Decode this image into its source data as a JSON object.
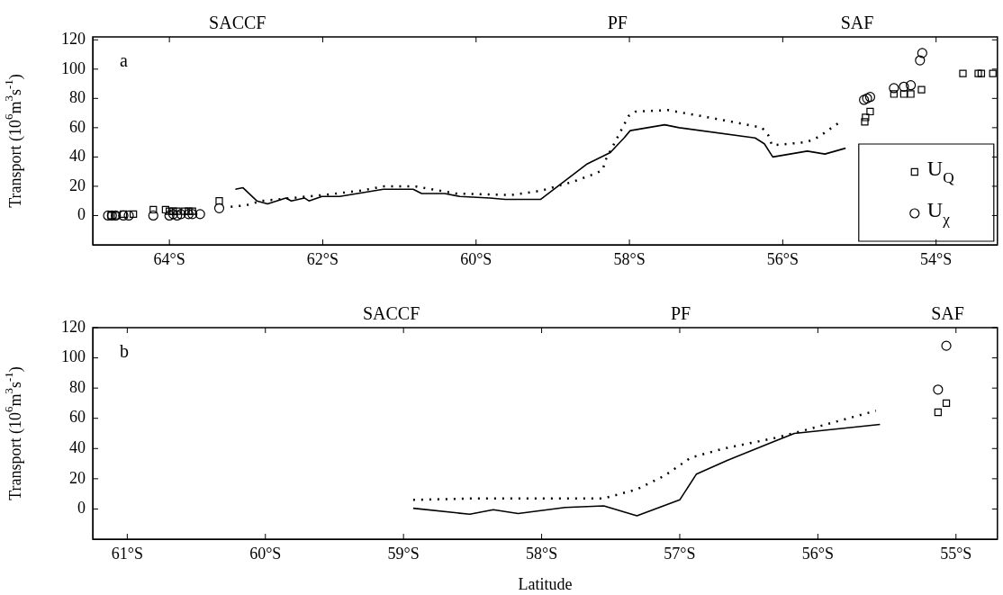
{
  "chart_data": [
    {
      "type": "line",
      "ylabel": "Transport (10$^{6}$m$^{3}$s$^{-1}$)",
      "xlim": [
        -65,
        -53.2
      ],
      "ylim": [
        -20,
        122
      ],
      "xticks": [
        {
          "value": -64,
          "label": "64°S"
        },
        {
          "value": -62,
          "label": "62°S"
        },
        {
          "value": -60,
          "label": "60°S"
        },
        {
          "value": -58,
          "label": "58°S"
        },
        {
          "value": -56,
          "label": "56°S"
        },
        {
          "value": -54,
          "label": "54°S"
        }
      ],
      "yticks": [
        0,
        20,
        40,
        60,
        80,
        100,
        120
      ],
      "grid": false,
      "legend": "bottom right",
      "annotations": [
        "SACCF",
        "PF",
        "SAF",
        "a"
      ],
      "series": [
        {
          "type": "line",
          "color": "#000000",
          "line_style": "solid",
          "marker": "none",
          "x": [
            -63.14,
            -63.04,
            -62.86,
            -62.72,
            -62.48,
            -62.41,
            -62.24,
            -62.18,
            -62.01,
            -61.78,
            -61.21,
            -60.82,
            -60.71,
            -60.41,
            -60.21,
            -59.82,
            -59.62,
            -59.16,
            -58.86,
            -58.56,
            -58.25,
            -58.07,
            -57.99,
            -57.54,
            -57.35,
            -56.36,
            -56.24,
            -56.13,
            -55.68,
            -55.45,
            -55.18
          ],
          "values": [
            18,
            19,
            10,
            8,
            12,
            10,
            12,
            10,
            13,
            13,
            18,
            18,
            15,
            15,
            13,
            12,
            11,
            11,
            23,
            35,
            43,
            53,
            58,
            62,
            60,
            53,
            49,
            40,
            44,
            42,
            46
          ]
        },
        {
          "type": "line",
          "color": "#000000",
          "line_style": "dotted",
          "marker": "none",
          "x": [
            -63.2,
            -63.0,
            -62.8,
            -62.4,
            -62.0,
            -61.5,
            -61.2,
            -60.8,
            -60.26,
            -59.54,
            -59.15,
            -58.74,
            -58.48,
            -58.35,
            -58.31,
            -58.13,
            -58.01,
            -57.92,
            -57.5,
            -57.07,
            -56.66,
            -56.27,
            -56.19,
            -56.14,
            -55.71,
            -55.59,
            -55.47,
            -55.25
          ],
          "values": [
            6,
            7,
            10,
            12,
            14,
            17,
            20,
            20,
            15,
            14,
            17,
            23,
            28,
            31,
            38,
            56,
            68,
            71,
            72,
            68,
            64,
            60,
            55,
            48,
            50,
            52,
            56,
            64
          ]
        },
        {
          "type": "scatter",
          "name": "U$_{Q}$",
          "color": "#000000",
          "marker": "square",
          "x": [
            -64.76,
            -64.7,
            -64.6,
            -64.47,
            -64.21,
            -64.05,
            -64.0,
            -63.95,
            -63.9,
            -63.8,
            -63.75,
            -63.7,
            -63.35,
            -54.93,
            -54.92,
            -54.86,
            -54.55,
            -54.42,
            -54.33,
            -54.19,
            -53.65,
            -53.45,
            -53.41,
            -53.26
          ],
          "values": [
            0,
            0,
            1,
            1,
            4,
            4,
            3,
            3,
            3,
            3,
            3,
            3,
            10,
            64,
            67,
            71,
            83,
            83,
            83,
            86,
            97,
            97,
            97,
            97
          ]
        },
        {
          "type": "scatter",
          "name": "U$_{χ}$",
          "color": "#000000",
          "marker": "circle",
          "x": [
            -64.8,
            -64.75,
            -64.7,
            -64.6,
            -64.53,
            -64.21,
            -64.0,
            -63.95,
            -63.9,
            -63.85,
            -63.75,
            -63.7,
            -63.6,
            -63.35,
            -54.94,
            -54.9,
            -54.86,
            -54.55,
            -54.42,
            -54.33,
            -54.21,
            -54.18
          ],
          "values": [
            0,
            0,
            0,
            0,
            0,
            0,
            0,
            1,
            0,
            1,
            1,
            1,
            1,
            5,
            79,
            80,
            81,
            87,
            88,
            89,
            106,
            111
          ]
        }
      ]
    },
    {
      "type": "line",
      "xlabel": "Latitude",
      "ylabel": "Transport (10$^{6}$m$^{3}$s$^{-1}$)",
      "xlim": [
        -61.25,
        -54.7
      ],
      "ylim": [
        -20,
        120
      ],
      "xticks": [
        {
          "value": -61,
          "label": "61°S"
        },
        {
          "value": -60,
          "label": "60°S"
        },
        {
          "value": -59,
          "label": "59°S"
        },
        {
          "value": -58,
          "label": "58°S"
        },
        {
          "value": -57,
          "label": "57°S"
        },
        {
          "value": -56,
          "label": "56°S"
        },
        {
          "value": -55,
          "label": "55°S"
        }
      ],
      "yticks": [
        0,
        20,
        40,
        60,
        80,
        100,
        120
      ],
      "grid": false,
      "annotations": [
        "SACCF",
        "PF",
        "SAF",
        "b"
      ],
      "series": [
        {
          "type": "line",
          "color": "#000000",
          "line_style": "solid",
          "marker": "none",
          "x": [
            -58.93,
            -58.52,
            -58.35,
            -58.17,
            -57.83,
            -57.55,
            -57.31,
            -57.0,
            -56.88,
            -56.66,
            -56.31,
            -56.17,
            -55.55
          ],
          "values": [
            0.5,
            -3.5,
            -0.5,
            -3,
            1,
            2,
            -4.5,
            6,
            23,
            32,
            45,
            50,
            56
          ]
        },
        {
          "type": "line",
          "color": "#000000",
          "line_style": "dotted",
          "marker": "none",
          "x": [
            -58.93,
            -58.5,
            -58.0,
            -57.55,
            -57.31,
            -57.11,
            -56.92,
            -56.68,
            -56.31,
            -56.1,
            -55.58
          ],
          "values": [
            6,
            7,
            7,
            7,
            13,
            22,
            34,
            40,
            47,
            52,
            65
          ]
        },
        {
          "type": "scatter",
          "color": "#000000",
          "marker": "square",
          "x": [
            -55.13,
            -55.07
          ],
          "values": [
            64,
            70
          ]
        },
        {
          "type": "scatter",
          "color": "#000000",
          "marker": "circle",
          "x": [
            -55.13,
            -55.07
          ],
          "values": [
            79,
            108
          ]
        }
      ]
    }
  ]
}
